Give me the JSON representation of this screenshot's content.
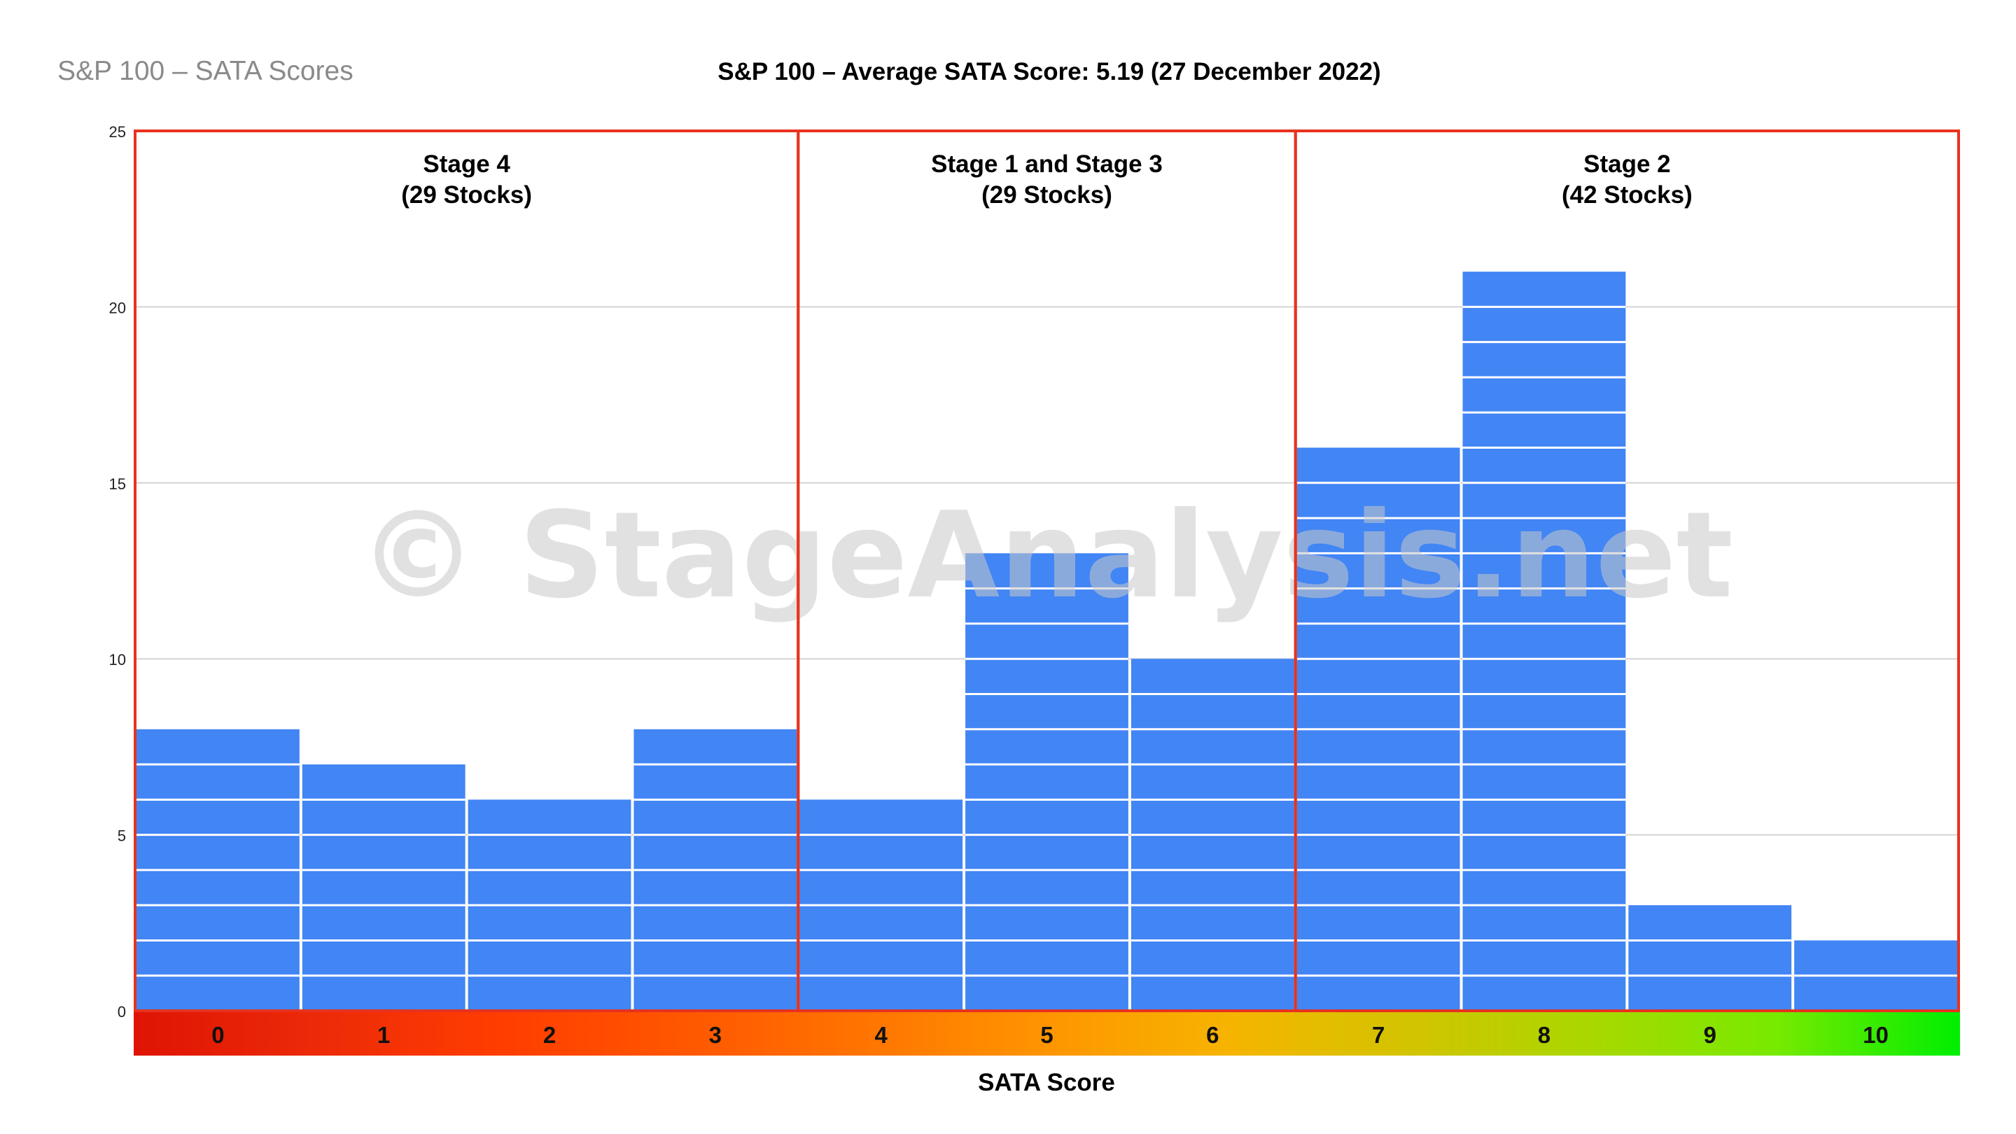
{
  "page": {
    "corner_title": "S&P 100 – SATA Scores",
    "watermark": "© StageAnalysis.net"
  },
  "chart_data": {
    "type": "bar",
    "title": "S&P 100 – Average SATA Score: 5.19 (27 December 2022)",
    "xlabel": "SATA Score",
    "ylabel": "",
    "categories": [
      "0",
      "1",
      "2",
      "3",
      "4",
      "5",
      "6",
      "7",
      "8",
      "9",
      "10"
    ],
    "values": [
      8,
      7,
      6,
      8,
      6,
      13,
      10,
      16,
      21,
      3,
      2
    ],
    "ylim": [
      0,
      25
    ],
    "yticks": [
      0,
      5,
      10,
      15,
      20,
      25
    ],
    "grid": true,
    "bar_color": "#4285F4",
    "bar_segments": "one white-separated block per stock",
    "stage_groups": [
      {
        "label": "Stage 4",
        "count_label": "(29 Stocks)",
        "categories": [
          "0",
          "1",
          "2",
          "3"
        ]
      },
      {
        "label": "Stage 1 and Stage 3",
        "count_label": "(29 Stocks)",
        "categories": [
          "4",
          "5",
          "6"
        ]
      },
      {
        "label": "Stage 2",
        "count_label": "(42 Stocks)",
        "categories": [
          "7",
          "8",
          "9",
          "10"
        ]
      }
    ],
    "group_border_color": "#E8321E",
    "score_band_colors": [
      "#DF1404",
      "#EC2A08",
      "#FF3D00",
      "#FF5600",
      "#FF7400",
      "#FF9500",
      "#F6B400",
      "#D2C400",
      "#A8D800",
      "#77EA00",
      "#00EE00"
    ]
  }
}
